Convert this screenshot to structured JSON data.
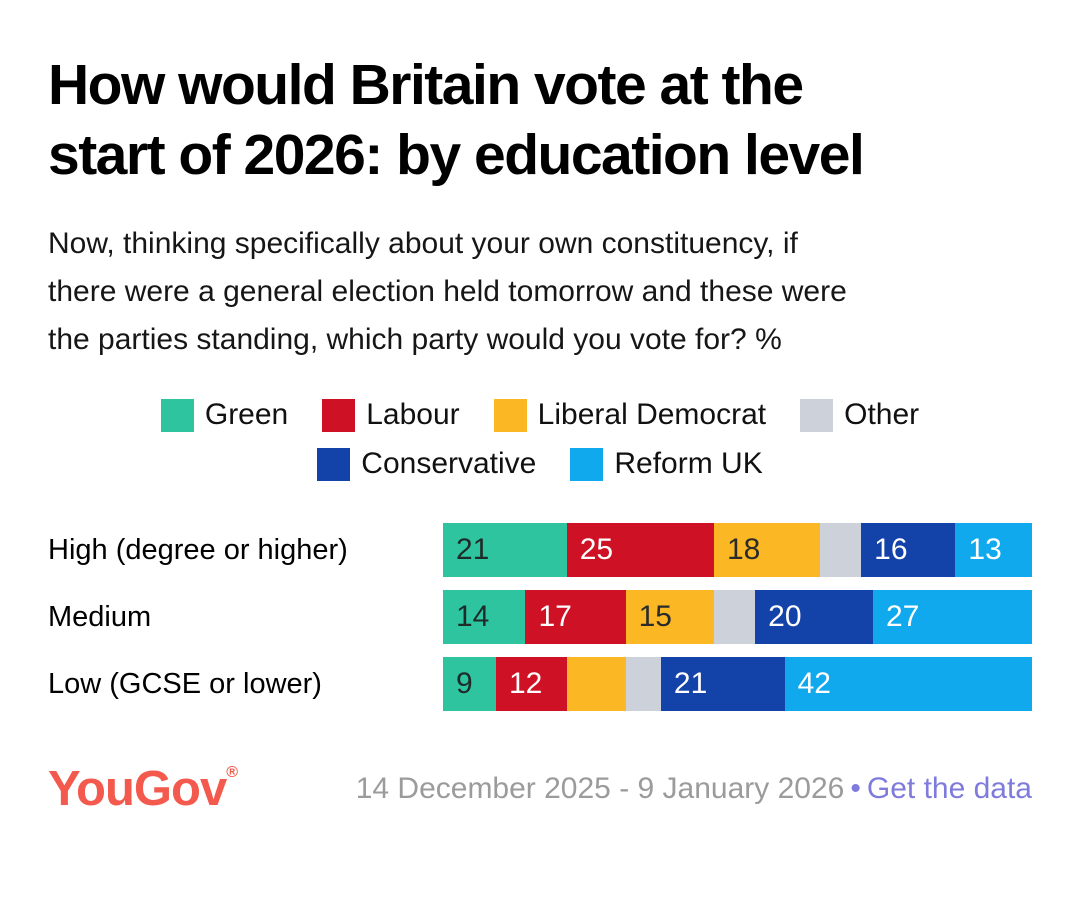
{
  "title": {
    "lines": [
      "How would Britain vote at the",
      "start of 2026: by education level"
    ]
  },
  "subtitle": {
    "lines": [
      "Now, thinking specifically about your own constituency, if",
      "there were a general election held tomorrow and these were",
      "the parties standing, which party would you vote for? %"
    ]
  },
  "chart_data": {
    "type": "bar",
    "stacked": true,
    "orientation": "horizontal",
    "title": "How would Britain vote at the start of 2026: by education level",
    "subtitle": "Now, thinking specifically about your own constituency, if there were a general election held tomorrow and these were the parties standing, which party would you vote for? %",
    "unit": "%",
    "xlim": [
      0,
      100
    ],
    "grid": false,
    "legend_position": "top-center",
    "categories": [
      "High (degree or higher)",
      "Medium",
      "Low (GCSE or lower)"
    ],
    "series": [
      {
        "name": "Green",
        "color": "#2EC4A0",
        "label_color": "#1F2B28",
        "values": [
          21,
          14,
          9
        ],
        "show_labels": [
          true,
          true,
          true
        ]
      },
      {
        "name": "Labour",
        "color": "#CE1124",
        "label_color": "#FFFFFF",
        "values": [
          25,
          17,
          12
        ],
        "show_labels": [
          true,
          true,
          true
        ]
      },
      {
        "name": "Liberal Democrat",
        "color": "#FBB824",
        "label_color": "#2B2B2B",
        "values": [
          18,
          15,
          10
        ],
        "show_labels": [
          true,
          true,
          false
        ]
      },
      {
        "name": "Other",
        "color": "#CDD2DA",
        "label_color": "#2B2B2B",
        "values": [
          7,
          7,
          6
        ],
        "show_labels": [
          false,
          false,
          false
        ]
      },
      {
        "name": "Conservative",
        "color": "#1343A8",
        "label_color": "#FFFFFF",
        "values": [
          16,
          20,
          21
        ],
        "show_labels": [
          true,
          true,
          true
        ]
      },
      {
        "name": "Reform UK",
        "color": "#10A9EE",
        "label_color": "#FFFFFF",
        "values": [
          13,
          27,
          42
        ],
        "show_labels": [
          true,
          true,
          true
        ]
      }
    ],
    "legend_rows": [
      [
        "Green",
        "Labour",
        "Liberal Democrat",
        "Other"
      ],
      [
        "Conservative",
        "Reform UK"
      ]
    ]
  },
  "footer": {
    "logo_text": "YouGov",
    "registered_mark": "®",
    "date_range": "14 December 2025 - 9 January 2026",
    "separator": "•",
    "link_label": "Get the data"
  },
  "colors": {
    "logo": "#F3594C",
    "link": "#7E7BDC",
    "date_text": "#9B9B9B",
    "background": "#FFFFFF"
  }
}
